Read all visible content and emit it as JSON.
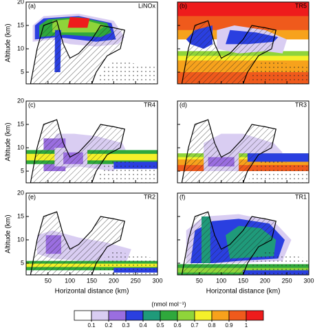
{
  "chart_data": [
    {
      "type": "contour",
      "label": "(a)",
      "name": "LiNOx",
      "xlim": [
        0,
        300
      ],
      "ylim": [
        2.5,
        20
      ],
      "xticks": [
        50,
        100,
        150,
        200,
        250,
        300
      ],
      "yticks": [
        5,
        10,
        15,
        20
      ],
      "ylabel": "Altitude (km)"
    },
    {
      "type": "contour",
      "label": "(b)",
      "name": "TR5",
      "xlim": [
        0,
        300
      ],
      "ylim": [
        2.5,
        20
      ],
      "xticks": [
        50,
        100,
        150,
        200,
        250,
        300
      ],
      "yticks": [
        5,
        10,
        15,
        20
      ]
    },
    {
      "type": "contour",
      "label": "(c)",
      "name": "TR4",
      "xlim": [
        0,
        300
      ],
      "ylim": [
        2.5,
        20
      ],
      "xticks": [
        50,
        100,
        150,
        200,
        250,
        300
      ],
      "yticks": [
        5,
        10,
        15,
        20
      ],
      "ylabel": "Altitude (km)"
    },
    {
      "type": "contour",
      "label": "(d)",
      "name": "TR3",
      "xlim": [
        0,
        300
      ],
      "ylim": [
        2.5,
        20
      ],
      "xticks": [
        50,
        100,
        150,
        200,
        250,
        300
      ],
      "yticks": [
        5,
        10,
        15,
        20
      ]
    },
    {
      "type": "contour",
      "label": "(e)",
      "name": "TR2",
      "xlim": [
        0,
        300
      ],
      "ylim": [
        2.5,
        20
      ],
      "xticks": [
        50,
        100,
        150,
        200,
        250,
        300
      ],
      "yticks": [
        5,
        10,
        15,
        20
      ],
      "ylabel": "Altitude (km)",
      "xlabel": "Horizontal distance (km)"
    },
    {
      "type": "contour",
      "label": "(f)",
      "name": "TR1",
      "xlim": [
        0,
        300
      ],
      "ylim": [
        2.5,
        20
      ],
      "xticks": [
        50,
        100,
        150,
        200,
        250,
        300
      ],
      "yticks": [
        5,
        10,
        15,
        20
      ],
      "xlabel": "Horizontal distance (km)"
    }
  ],
  "colorbar": {
    "title": "(nmol mol⁻¹)",
    "levels": [
      0.1,
      0.2,
      0.3,
      0.4,
      0.5,
      0.6,
      0.7,
      0.8,
      0.9,
      1
    ],
    "colors": [
      "#ffffff",
      "#d9cdf2",
      "#9a6ee0",
      "#2a3fe0",
      "#1f9a7a",
      "#2fa83c",
      "#8fd43a",
      "#f5f02a",
      "#f7a21c",
      "#ef5a1c",
      "#ee1c1c"
    ]
  }
}
